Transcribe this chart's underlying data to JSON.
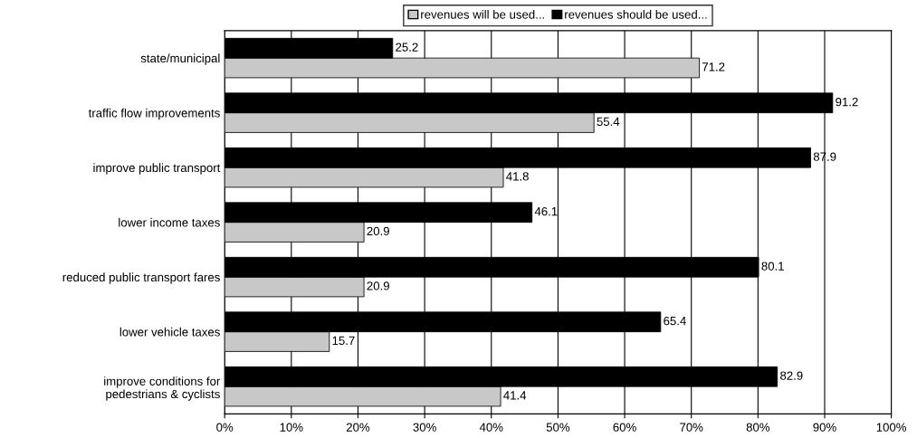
{
  "chart_data": {
    "type": "bar",
    "orientation": "horizontal",
    "categories": [
      "state/municipal",
      "traffic flow improvements",
      "improve public transport",
      "lower income taxes",
      "reduced public transport fares",
      "lower vehicle taxes",
      "improve conditions for\npedestrians & cyclists"
    ],
    "series": [
      {
        "name": "revenues will be used...",
        "color": "#c8c8c8",
        "values": [
          71.2,
          55.4,
          41.8,
          20.9,
          20.9,
          15.7,
          41.4
        ]
      },
      {
        "name": "revenues should be used...",
        "color": "#000000",
        "values": [
          25.2,
          91.2,
          87.9,
          46.1,
          80.1,
          65.4,
          82.9
        ]
      }
    ],
    "xlim": [
      0,
      100
    ],
    "xticks": [
      {
        "value": 0,
        "label": "0%"
      },
      {
        "value": 10,
        "label": "10%"
      },
      {
        "value": 20,
        "label": "20%"
      },
      {
        "value": 30,
        "label": "30%"
      },
      {
        "value": 40,
        "label": "40%"
      },
      {
        "value": 50,
        "label": "50%"
      },
      {
        "value": 60,
        "label": "60%"
      },
      {
        "value": 70,
        "label": "70%"
      },
      {
        "value": 80,
        "label": "80%"
      },
      {
        "value": 90,
        "label": "90%"
      },
      {
        "value": 100,
        "label": "100%"
      }
    ],
    "data_labels": true,
    "grid": "x",
    "legend": "top"
  }
}
